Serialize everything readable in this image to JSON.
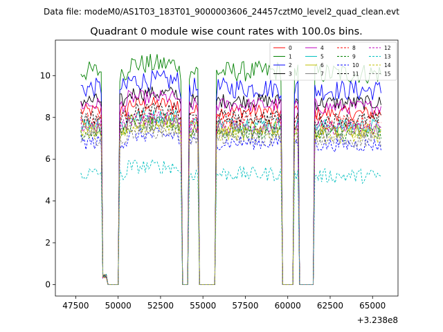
{
  "header": {
    "suptitle": "Data file: modeM0/AS1T03_183T01_9000003606_24457cztM0_level2_quad_clean.evt"
  },
  "chart_data": {
    "type": "line",
    "title": "Quadrant 0 module wise count rates with 100.0s bins.",
    "xlabel": "",
    "ylabel": "",
    "x_offset_label": "+3.238e8",
    "xlim": [
      46300,
      66500
    ],
    "ylim": [
      -0.55,
      11.7
    ],
    "xticks": [
      47500,
      50000,
      52500,
      55000,
      57500,
      60000,
      62500,
      65000
    ],
    "xtick_labels": [
      "47500",
      "50000",
      "52500",
      "55000",
      "57500",
      "60000",
      "62500",
      "65000"
    ],
    "yticks": [
      0,
      2,
      4,
      6,
      8,
      10
    ],
    "ytick_labels": [
      "0",
      "2",
      "4",
      "6",
      "8",
      "10"
    ],
    "legend": {
      "placement": "top-right",
      "entries": [
        "0",
        "1",
        "2",
        "3",
        "4",
        "5",
        "6",
        "7",
        "8",
        "9",
        "10",
        "11",
        "12",
        "13",
        "14",
        "15"
      ]
    },
    "segments": [
      {
        "start": 47800,
        "end": 49000,
        "type": "on"
      },
      {
        "start": 49100,
        "end": 49300,
        "type": "drop"
      },
      {
        "start": 49300,
        "end": 49900,
        "type": "off"
      },
      {
        "start": 50100,
        "end": 53700,
        "type": "on"
      },
      {
        "start": 53800,
        "end": 54000,
        "type": "off"
      },
      {
        "start": 54200,
        "end": 54700,
        "type": "on"
      },
      {
        "start": 55000,
        "end": 55700,
        "type": "off"
      },
      {
        "start": 55800,
        "end": 59600,
        "type": "on"
      },
      {
        "start": 59900,
        "end": 60300,
        "type": "off"
      },
      {
        "start": 60400,
        "end": 60600,
        "type": "on"
      },
      {
        "start": 60800,
        "end": 61000,
        "type": "off"
      },
      {
        "start": 61100,
        "end": 61400,
        "type": "off"
      },
      {
        "start": 61600,
        "end": 65500,
        "type": "on"
      }
    ],
    "series": [
      {
        "name": "0",
        "color": "#ff0000",
        "dash": "solid",
        "level": 8.3
      },
      {
        "name": "1",
        "color": "#008000",
        "dash": "solid",
        "level": 10.2
      },
      {
        "name": "2",
        "color": "#0000ff",
        "dash": "solid",
        "level": 9.4
      },
      {
        "name": "3",
        "color": "#000000",
        "dash": "solid",
        "level": 8.8
      },
      {
        "name": "4",
        "color": "#bf00bf",
        "dash": "solid",
        "level": 8.6
      },
      {
        "name": "5",
        "color": "#00bfbf",
        "dash": "solid",
        "level": 7.7
      },
      {
        "name": "6",
        "color": "#bfbf00",
        "dash": "solid",
        "level": 7.5
      },
      {
        "name": "7",
        "color": "#808080",
        "dash": "solid",
        "level": 7.4
      },
      {
        "name": "8",
        "color": "#ff0000",
        "dash": "dashed",
        "level": 7.9
      },
      {
        "name": "9",
        "color": "#008000",
        "dash": "dashed",
        "level": 7.3
      },
      {
        "name": "10",
        "color": "#0000ff",
        "dash": "dashed",
        "level": 6.8
      },
      {
        "name": "11",
        "color": "#000000",
        "dash": "dashed",
        "level": 8.0
      },
      {
        "name": "12",
        "color": "#bf00bf",
        "dash": "dashed",
        "level": 7.6
      },
      {
        "name": "13",
        "color": "#00bfbf",
        "dash": "dashed",
        "level": 5.3
      },
      {
        "name": "14",
        "color": "#bfbf00",
        "dash": "dashed",
        "level": 7.2
      },
      {
        "name": "15",
        "color": "#808080",
        "dash": "dashed",
        "level": 7.0
      }
    ]
  }
}
